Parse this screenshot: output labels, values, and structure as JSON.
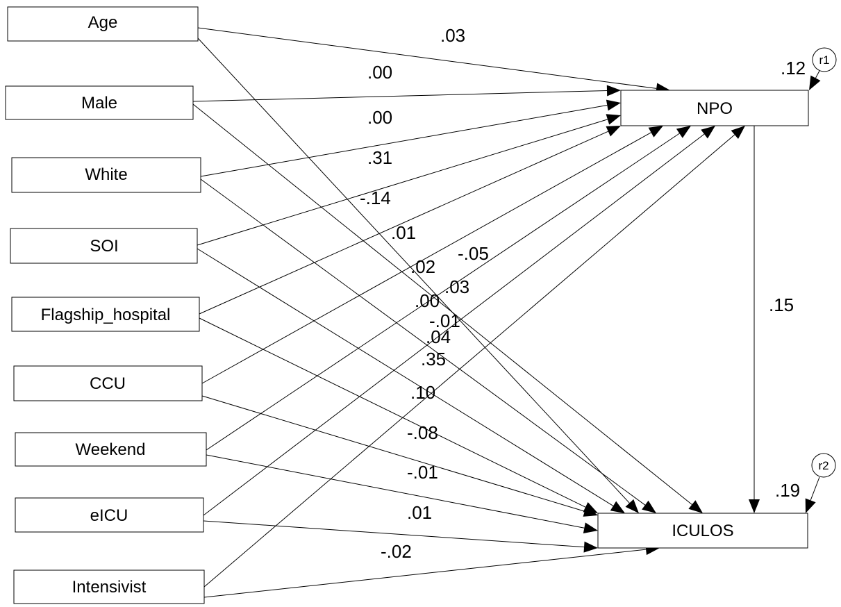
{
  "nodes": {
    "age": "Age",
    "male": "Male",
    "white": "White",
    "soi": "SOI",
    "flagship_hospital": "Flagship_hospital",
    "ccu": "CCU",
    "weekend": "Weekend",
    "eicu": "eICU",
    "intensivist": "Intensivist",
    "npo": "NPO",
    "iculos": "ICULOS"
  },
  "errors": {
    "r1": "r1",
    "r2": "r2"
  },
  "r_squared": {
    "npo": ".12",
    "iculos": ".19"
  },
  "paths": {
    "age_npo": ".03",
    "male_npo": ".00",
    "white_npo": ".00",
    "soi_npo": ".31",
    "flagship_npo": "-.14",
    "ccu_npo": ".01",
    "weekend_npo": "-.05",
    "eicu_npo": ".03",
    "intensivist_npo": "-.01",
    "age_iculos": ".02",
    "male_iculos": ".00",
    "white_iculos": ".04",
    "soi_iculos": ".35",
    "flagship_iculos": ".10",
    "ccu_iculos": "-.08",
    "weekend_iculos": "-.01",
    "eicu_iculos": ".01",
    "intensivist_iculos": "-.02",
    "npo_iculos": ".15"
  }
}
